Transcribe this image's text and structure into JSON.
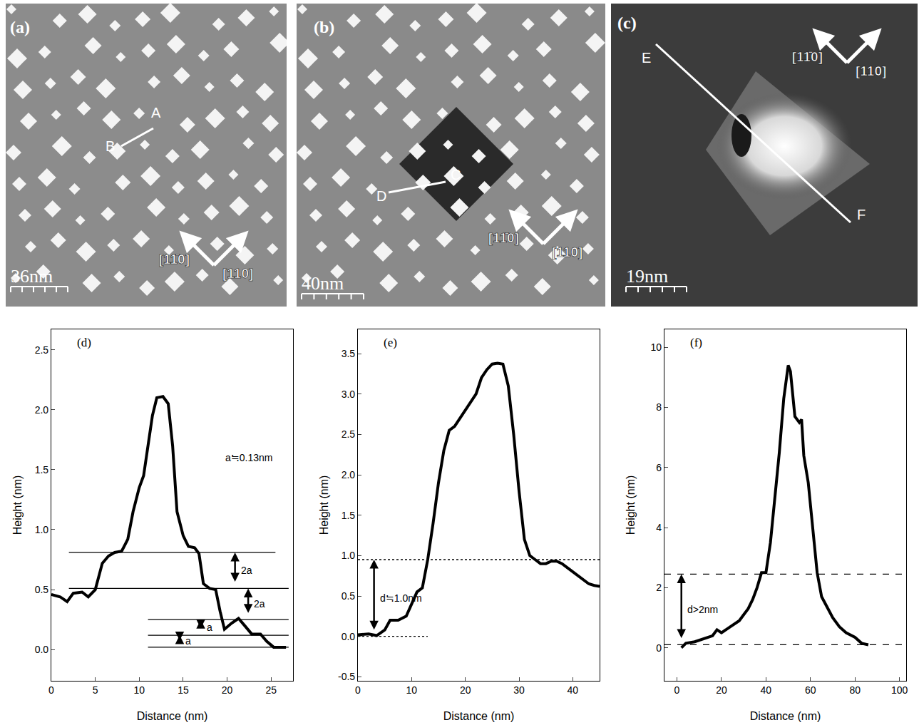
{
  "images": [
    {
      "label": "(a)",
      "scale_bar": "36nm",
      "profile_labels": [
        "A",
        "B"
      ],
      "directions": [
        "[11̄0]",
        "[110]"
      ]
    },
    {
      "label": "(b)",
      "scale_bar": "40nm",
      "profile_labels": [
        "C",
        "D"
      ],
      "directions": [
        "[11̄0]",
        "[110]"
      ]
    },
    {
      "label": "(c)",
      "scale_bar": "19nm",
      "profile_labels": [
        "E",
        "F"
      ],
      "directions": [
        "[11̄0]",
        "[110]"
      ]
    }
  ],
  "chart_data": [
    {
      "type": "line",
      "title": "(d)",
      "x_label": "Distance (nm)",
      "y_label": "Height (nm)",
      "color": "#000000",
      "x": [
        0,
        1,
        1.8,
        2.5,
        3.5,
        4.2,
        5,
        5.8,
        6.5,
        7.2,
        8,
        8.7,
        9.3,
        10,
        10.5,
        11,
        11.5,
        12,
        12.7,
        13.3,
        13.8,
        14.3,
        15,
        15.6,
        16.3,
        16.8,
        17.3,
        18,
        18.7,
        19.2,
        19.7,
        20.5,
        21.3,
        22,
        22.8,
        23.8,
        24.5,
        25.3,
        26,
        26.7
      ],
      "values": [
        0.46,
        0.44,
        0.4,
        0.47,
        0.48,
        0.44,
        0.5,
        0.72,
        0.78,
        0.81,
        0.82,
        0.92,
        1.15,
        1.35,
        1.45,
        1.7,
        1.95,
        2.1,
        2.11,
        2.05,
        1.7,
        1.15,
        0.95,
        0.86,
        0.85,
        0.8,
        0.55,
        0.51,
        0.5,
        0.32,
        0.17,
        0.22,
        0.26,
        0.2,
        0.13,
        0.13,
        0.07,
        0.02,
        0.02,
        0.02
      ],
      "xlim": [
        0,
        27.5
      ],
      "xticks": [
        0,
        5,
        10,
        15,
        20,
        25
      ],
      "ylim": [
        -0.26,
        2.67
      ],
      "yticks": [
        {
          "value": 0,
          "label": "0.0"
        },
        0.5,
        {
          "value": 1,
          "label": "1.0"
        },
        1.5,
        {
          "value": 2,
          "label": "2.0"
        },
        2.5
      ],
      "reference_lines": [
        {
          "y": 0.81,
          "x": [
            2,
            25.5
          ],
          "line_style": "solid"
        },
        {
          "y": 0.51,
          "x": [
            2,
            27
          ],
          "line_style": "solid"
        },
        {
          "y": 0.25,
          "x": [
            11,
            27
          ],
          "line_style": "solid"
        },
        {
          "y": 0.12,
          "x": [
            11,
            27
          ],
          "line_style": "solid"
        },
        {
          "y": 0.02,
          "x": [
            11,
            27
          ],
          "line_style": "solid"
        }
      ],
      "markers": [
        {
          "text": "2a",
          "x": 20.9,
          "y": [
            0.51,
            0.81
          ]
        },
        {
          "text": "2a",
          "x": 22.4,
          "y": [
            0.25,
            0.51
          ]
        },
        {
          "text": "a",
          "x": 17.0,
          "y": [
            0.12,
            0.25
          ]
        },
        {
          "text": "a",
          "x": 14.6,
          "y": [
            0.02,
            0.12
          ]
        }
      ],
      "annotations": [
        {
          "text": "a≒0.13nm",
          "x": 22.5,
          "y": 1.6
        }
      ]
    },
    {
      "type": "line",
      "title": "(e)",
      "x_label": "Distance (nm)",
      "y_label": "Height (nm)",
      "color": "#000000",
      "x": [
        0,
        2,
        3.5,
        5,
        6,
        7.5,
        9,
        10,
        11,
        12,
        13,
        14,
        15,
        16,
        17,
        18,
        19,
        20,
        21,
        22,
        23,
        24,
        25,
        26,
        27,
        28,
        29,
        30,
        31,
        32,
        33,
        34,
        35,
        36,
        37,
        38,
        39,
        40,
        41,
        42,
        43,
        44,
        45
      ],
      "values": [
        0.02,
        0.03,
        0.01,
        0.08,
        0.2,
        0.2,
        0.25,
        0.4,
        0.55,
        0.6,
        0.95,
        1.4,
        1.9,
        2.3,
        2.55,
        2.6,
        2.7,
        2.8,
        2.9,
        3.0,
        3.2,
        3.3,
        3.37,
        3.38,
        3.37,
        3.1,
        2.5,
        1.8,
        1.2,
        1.0,
        0.95,
        0.9,
        0.9,
        0.93,
        0.93,
        0.9,
        0.85,
        0.8,
        0.75,
        0.7,
        0.65,
        0.63,
        0.62
      ],
      "xlim": [
        0,
        45
      ],
      "xticks": [
        0,
        10,
        20,
        30,
        40
      ],
      "ylim": [
        -0.55,
        3.8
      ],
      "yticks": [
        -0.5,
        {
          "value": 0,
          "label": "0.0"
        },
        0.5,
        {
          "value": 1,
          "label": "1.0"
        },
        1.5,
        {
          "value": 2,
          "label": "2.0"
        },
        2.5,
        {
          "value": 3,
          "label": "3.0"
        },
        3.5
      ],
      "reference_lines": [
        {
          "y": 0.95,
          "x": [
            0,
            45
          ],
          "line_style": "dotted"
        },
        {
          "y": 0,
          "x": [
            0,
            13
          ],
          "line_style": "dotted"
        }
      ],
      "markers": [
        {
          "text": "d≒1.0nm",
          "x": 3,
          "y": [
            0,
            0.95
          ]
        }
      ],
      "annotations": []
    },
    {
      "type": "line",
      "title": "(f)",
      "x_label": "Distance (nm)",
      "y_label": "Height (nm)",
      "color": "#000000",
      "x": [
        2,
        4,
        8,
        12,
        16,
        18,
        20,
        24,
        28,
        30,
        32,
        34,
        36,
        38,
        40,
        42,
        44,
        46,
        48,
        50,
        51,
        53,
        55,
        56,
        57,
        59,
        61,
        63,
        65,
        67,
        70,
        73,
        76,
        80,
        83,
        86
      ],
      "values": [
        0.0,
        0.15,
        0.2,
        0.3,
        0.4,
        0.6,
        0.5,
        0.7,
        0.9,
        1.1,
        1.3,
        1.6,
        2.0,
        2.5,
        2.5,
        3.5,
        5.0,
        6.5,
        8.3,
        9.4,
        9.2,
        7.7,
        7.5,
        7.6,
        6.4,
        5.5,
        4.0,
        2.5,
        1.7,
        1.4,
        1.0,
        0.7,
        0.5,
        0.35,
        0.15,
        0.1
      ],
      "xlim": [
        -5.6,
        103
      ],
      "xticks": [
        0,
        20,
        40,
        60,
        80,
        100
      ],
      "ylim": [
        -1.1,
        10.6
      ],
      "yticks": [
        0,
        2,
        4,
        6,
        8,
        10
      ],
      "reference_lines": [
        {
          "y": 2.45,
          "x": [
            -5.6,
            103
          ],
          "line_style": "dashed"
        },
        {
          "y": 0.1,
          "x": [
            -5.6,
            103
          ],
          "line_style": "dashed"
        }
      ],
      "markers": [
        {
          "text": "d>2nm",
          "x": 2,
          "y": [
            0.1,
            2.45
          ]
        }
      ],
      "annotations": []
    }
  ]
}
